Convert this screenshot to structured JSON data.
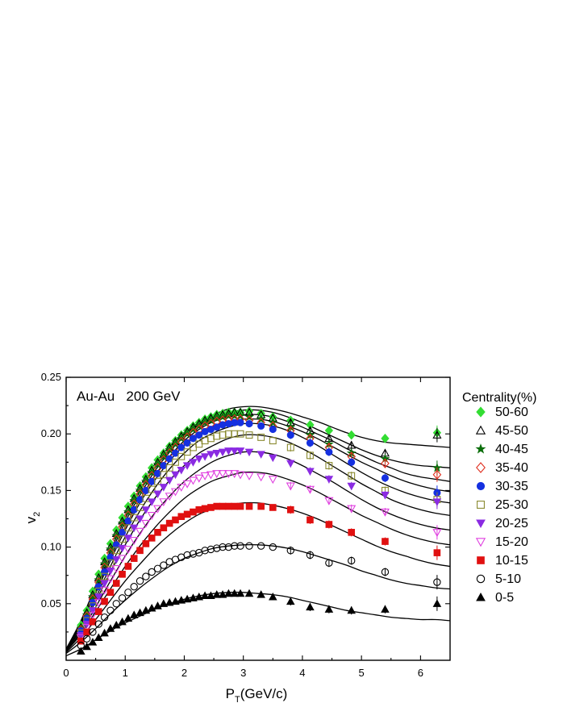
{
  "chart_data": {
    "type": "scatter",
    "annotation": "Au-Au   200 GeV",
    "xlabel": "P",
    "xlabel_sub": "T",
    "xlabel_rest": "(GeV/c)",
    "ylabel": "v",
    "ylabel_sub": "2",
    "xlim": [
      0,
      6.5
    ],
    "ylim": [
      0.0,
      0.25
    ],
    "xticks": [
      0,
      1,
      2,
      3,
      4,
      5,
      6
    ],
    "xtick_labels": [
      "0",
      "1",
      "2",
      "3",
      "4",
      "5",
      "6"
    ],
    "yticks": [
      0.05,
      0.1,
      0.15,
      0.2,
      0.25
    ],
    "ytick_labels": [
      "0.05",
      "0.10",
      "0.15",
      "0.20",
      "0.25"
    ],
    "grid": false,
    "legend_title": "Centrality(%)",
    "legend_position": "right",
    "x": [
      0.25,
      0.35,
      0.45,
      0.55,
      0.65,
      0.75,
      0.85,
      0.95,
      1.05,
      1.15,
      1.25,
      1.35,
      1.45,
      1.55,
      1.65,
      1.75,
      1.85,
      1.95,
      2.05,
      2.15,
      2.25,
      2.35,
      2.45,
      2.55,
      2.65,
      2.75,
      2.85,
      2.95,
      3.1,
      3.3,
      3.5,
      3.8,
      4.13,
      4.45,
      4.83,
      5.4,
      6.28
    ],
    "series": [
      {
        "name": "50-60",
        "marker": "diamond-filled",
        "color": "#33dd33",
        "values": [
          0.031,
          0.044,
          0.061,
          0.076,
          0.09,
          0.103,
          0.115,
          0.126,
          0.136,
          0.145,
          0.154,
          0.162,
          0.17,
          0.177,
          0.183,
          0.189,
          0.194,
          0.199,
          0.203,
          0.207,
          0.21,
          0.213,
          0.215,
          0.217,
          0.218,
          0.219,
          0.219,
          0.219,
          0.22,
          0.218,
          0.215,
          0.212,
          0.208,
          0.203,
          0.199,
          0.196,
          0.201
        ]
      },
      {
        "name": "45-50",
        "marker": "triangle-open",
        "color": "#000000",
        "values": [
          0.029,
          0.042,
          0.058,
          0.073,
          0.087,
          0.1,
          0.112,
          0.123,
          0.133,
          0.143,
          0.152,
          0.16,
          0.168,
          0.175,
          0.182,
          0.188,
          0.193,
          0.198,
          0.202,
          0.206,
          0.209,
          0.212,
          0.214,
          0.216,
          0.217,
          0.218,
          0.219,
          0.219,
          0.219,
          0.217,
          0.214,
          0.21,
          0.203,
          0.196,
          0.19,
          0.183,
          0.199
        ]
      },
      {
        "name": "40-45",
        "marker": "star-filled",
        "color": "#0b6e0b",
        "values": [
          0.028,
          0.04,
          0.056,
          0.071,
          0.085,
          0.098,
          0.11,
          0.121,
          0.131,
          0.141,
          0.15,
          0.158,
          0.166,
          0.173,
          0.18,
          0.186,
          0.191,
          0.196,
          0.2,
          0.204,
          0.207,
          0.21,
          0.212,
          0.214,
          0.215,
          0.216,
          0.216,
          0.216,
          0.215,
          0.213,
          0.21,
          0.206,
          0.199,
          0.191,
          0.183,
          0.178,
          0.17
        ]
      },
      {
        "name": "35-40",
        "marker": "diamond-open",
        "color": "#e03020",
        "values": [
          0.027,
          0.039,
          0.054,
          0.069,
          0.082,
          0.095,
          0.107,
          0.118,
          0.128,
          0.138,
          0.147,
          0.155,
          0.163,
          0.17,
          0.177,
          0.183,
          0.188,
          0.193,
          0.197,
          0.201,
          0.204,
          0.207,
          0.209,
          0.211,
          0.212,
          0.213,
          0.213,
          0.213,
          0.212,
          0.21,
          0.207,
          0.203,
          0.196,
          0.188,
          0.18,
          0.174,
          0.164
        ]
      },
      {
        "name": "30-35",
        "marker": "circle-filled",
        "color": "#1530e0",
        "values": [
          0.026,
          0.037,
          0.051,
          0.065,
          0.078,
          0.091,
          0.102,
          0.113,
          0.123,
          0.133,
          0.142,
          0.15,
          0.158,
          0.165,
          0.172,
          0.178,
          0.183,
          0.188,
          0.192,
          0.196,
          0.199,
          0.202,
          0.204,
          0.206,
          0.208,
          0.209,
          0.21,
          0.21,
          0.209,
          0.207,
          0.204,
          0.199,
          0.192,
          0.184,
          0.175,
          0.161,
          0.148
        ]
      },
      {
        "name": "25-30",
        "marker": "square-open",
        "color": "#8a8a30",
        "values": [
          0.024,
          0.035,
          0.048,
          0.061,
          0.074,
          0.086,
          0.097,
          0.107,
          0.117,
          0.126,
          0.135,
          0.143,
          0.151,
          0.158,
          0.164,
          0.17,
          0.175,
          0.18,
          0.184,
          0.188,
          0.191,
          0.194,
          0.196,
          0.198,
          0.199,
          0.2,
          0.2,
          0.2,
          0.199,
          0.197,
          0.194,
          0.188,
          0.181,
          0.172,
          0.163,
          0.15,
          0.142
        ]
      },
      {
        "name": "20-25",
        "marker": "triangle-down-filled",
        "color": "#8a2be2",
        "values": [
          0.022,
          0.032,
          0.044,
          0.056,
          0.068,
          0.079,
          0.089,
          0.099,
          0.108,
          0.117,
          0.125,
          0.133,
          0.14,
          0.147,
          0.153,
          0.159,
          0.164,
          0.168,
          0.172,
          0.175,
          0.178,
          0.18,
          0.182,
          0.183,
          0.184,
          0.185,
          0.185,
          0.185,
          0.184,
          0.182,
          0.179,
          0.174,
          0.167,
          0.16,
          0.154,
          0.146,
          0.14
        ]
      },
      {
        "name": "15-20",
        "marker": "triangle-down-open",
        "color": "#e040e0",
        "values": [
          0.02,
          0.029,
          0.04,
          0.051,
          0.062,
          0.072,
          0.081,
          0.09,
          0.098,
          0.106,
          0.114,
          0.121,
          0.128,
          0.134,
          0.14,
          0.145,
          0.149,
          0.153,
          0.156,
          0.159,
          0.161,
          0.163,
          0.164,
          0.165,
          0.165,
          0.165,
          0.165,
          0.164,
          0.163,
          0.162,
          0.16,
          0.154,
          0.151,
          0.141,
          0.134,
          0.131,
          0.113
        ]
      },
      {
        "name": "10-15",
        "marker": "square-filled",
        "color": "#e01010",
        "values": [
          0.017,
          0.025,
          0.034,
          0.043,
          0.052,
          0.06,
          0.068,
          0.076,
          0.083,
          0.09,
          0.097,
          0.103,
          0.108,
          0.113,
          0.117,
          0.121,
          0.124,
          0.127,
          0.129,
          0.131,
          0.133,
          0.134,
          0.135,
          0.136,
          0.136,
          0.136,
          0.136,
          0.136,
          0.136,
          0.136,
          0.135,
          0.133,
          0.124,
          0.12,
          0.113,
          0.105,
          0.095
        ]
      },
      {
        "name": "5-10",
        "marker": "circle-open",
        "color": "#000000",
        "values": [
          0.013,
          0.019,
          0.025,
          0.032,
          0.038,
          0.044,
          0.05,
          0.055,
          0.06,
          0.065,
          0.07,
          0.074,
          0.078,
          0.081,
          0.084,
          0.087,
          0.089,
          0.091,
          0.093,
          0.094,
          0.095,
          0.097,
          0.098,
          0.099,
          0.1,
          0.1,
          0.101,
          0.101,
          0.101,
          0.101,
          0.1,
          0.097,
          0.093,
          0.086,
          0.088,
          0.078,
          0.069
        ]
      },
      {
        "name": "0-5",
        "marker": "triangle-filled",
        "color": "#000000",
        "values": [
          0.008,
          0.012,
          0.016,
          0.02,
          0.024,
          0.028,
          0.031,
          0.034,
          0.037,
          0.04,
          0.042,
          0.044,
          0.046,
          0.048,
          0.05,
          0.051,
          0.052,
          0.053,
          0.054,
          0.055,
          0.056,
          0.057,
          0.057,
          0.058,
          0.058,
          0.059,
          0.059,
          0.059,
          0.059,
          0.058,
          0.056,
          0.052,
          0.047,
          0.045,
          0.044,
          0.045,
          0.05
        ]
      }
    ],
    "fit_x": [
      0.0,
      0.25,
      0.5,
      0.75,
      1.0,
      1.25,
      1.5,
      1.75,
      2.0,
      2.25,
      2.5,
      2.75,
      3.0,
      3.25,
      3.5,
      3.75,
      4.0,
      4.25,
      4.5,
      4.75,
      5.0,
      5.25,
      5.5,
      5.75,
      6.0,
      6.25,
      6.5
    ],
    "fits": [
      [
        0.01,
        0.035,
        0.066,
        0.097,
        0.125,
        0.149,
        0.17,
        0.187,
        0.2,
        0.21,
        0.217,
        0.222,
        0.224,
        0.224,
        0.222,
        0.219,
        0.215,
        0.211,
        0.206,
        0.201,
        0.197,
        0.194,
        0.192,
        0.191,
        0.19,
        0.189,
        0.188
      ],
      [
        0.01,
        0.033,
        0.063,
        0.094,
        0.122,
        0.146,
        0.167,
        0.184,
        0.198,
        0.208,
        0.215,
        0.219,
        0.221,
        0.221,
        0.219,
        0.215,
        0.21,
        0.204,
        0.198,
        0.192,
        0.186,
        0.181,
        0.177,
        0.174,
        0.172,
        0.171,
        0.17
      ],
      [
        0.01,
        0.032,
        0.061,
        0.091,
        0.118,
        0.142,
        0.163,
        0.18,
        0.194,
        0.204,
        0.211,
        0.215,
        0.217,
        0.217,
        0.215,
        0.211,
        0.206,
        0.2,
        0.194,
        0.187,
        0.181,
        0.175,
        0.17,
        0.165,
        0.162,
        0.16,
        0.158
      ],
      [
        0.01,
        0.031,
        0.059,
        0.088,
        0.115,
        0.139,
        0.159,
        0.176,
        0.19,
        0.2,
        0.207,
        0.211,
        0.213,
        0.213,
        0.211,
        0.207,
        0.202,
        0.196,
        0.189,
        0.182,
        0.175,
        0.169,
        0.163,
        0.158,
        0.154,
        0.151,
        0.149
      ],
      [
        0.009,
        0.029,
        0.055,
        0.083,
        0.109,
        0.132,
        0.152,
        0.169,
        0.183,
        0.194,
        0.201,
        0.206,
        0.209,
        0.209,
        0.207,
        0.203,
        0.197,
        0.19,
        0.182,
        0.174,
        0.166,
        0.159,
        0.153,
        0.148,
        0.144,
        0.141,
        0.139
      ],
      [
        0.009,
        0.027,
        0.052,
        0.078,
        0.102,
        0.124,
        0.143,
        0.159,
        0.172,
        0.183,
        0.19,
        0.196,
        0.199,
        0.199,
        0.197,
        0.193,
        0.187,
        0.18,
        0.172,
        0.164,
        0.156,
        0.149,
        0.142,
        0.137,
        0.133,
        0.13,
        0.128
      ],
      [
        0.008,
        0.025,
        0.047,
        0.07,
        0.092,
        0.112,
        0.13,
        0.145,
        0.158,
        0.168,
        0.176,
        0.181,
        0.184,
        0.184,
        0.182,
        0.178,
        0.172,
        0.165,
        0.158,
        0.15,
        0.142,
        0.135,
        0.129,
        0.124,
        0.12,
        0.117,
        0.115
      ],
      [
        0.008,
        0.023,
        0.043,
        0.063,
        0.083,
        0.101,
        0.117,
        0.131,
        0.143,
        0.152,
        0.159,
        0.163,
        0.166,
        0.166,
        0.164,
        0.16,
        0.155,
        0.149,
        0.142,
        0.135,
        0.128,
        0.122,
        0.116,
        0.111,
        0.107,
        0.104,
        0.102
      ],
      [
        0.007,
        0.02,
        0.036,
        0.053,
        0.07,
        0.085,
        0.099,
        0.111,
        0.121,
        0.129,
        0.134,
        0.137,
        0.139,
        0.139,
        0.137,
        0.134,
        0.13,
        0.125,
        0.119,
        0.113,
        0.107,
        0.101,
        0.096,
        0.092,
        0.088,
        0.085,
        0.083
      ],
      [
        0.006,
        0.016,
        0.028,
        0.041,
        0.053,
        0.064,
        0.074,
        0.083,
        0.09,
        0.095,
        0.099,
        0.101,
        0.102,
        0.102,
        0.101,
        0.099,
        0.096,
        0.092,
        0.088,
        0.084,
        0.079,
        0.075,
        0.071,
        0.068,
        0.066,
        0.064,
        0.063
      ],
      [
        0.004,
        0.01,
        0.018,
        0.026,
        0.033,
        0.039,
        0.045,
        0.05,
        0.054,
        0.057,
        0.059,
        0.06,
        0.06,
        0.059,
        0.058,
        0.056,
        0.053,
        0.05,
        0.047,
        0.044,
        0.042,
        0.04,
        0.038,
        0.037,
        0.036,
        0.036,
        0.035
      ]
    ]
  }
}
